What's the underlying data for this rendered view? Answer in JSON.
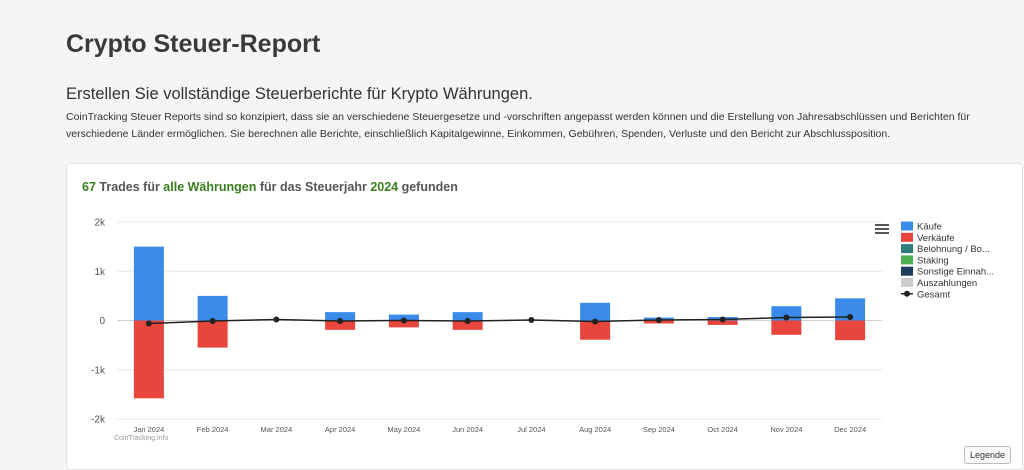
{
  "page": {
    "title": "Crypto Steuer-Report",
    "subtitle": "Erstellen Sie vollständige Steuerberichte für Krypto Währungen.",
    "description": "CoinTracking Steuer Reports sind so konzipiert, dass sie an verschiedene Steuergesetze und -vorschriften angepasst werden können und die Erstellung von Jahresabschlüssen und Berichten für verschiedene Länder ermöglichen. Sie berechnen alle Berichte, einschließlich Kapitalgewinne, Einkommen, Gebühren, Spenden, Verluste und den Bericht zur Abschlussposition."
  },
  "card": {
    "count": "67",
    "trades_label": " Trades für ",
    "currency": "alle Währungen",
    "mid_label": " für das Steuerjahr ",
    "year": "2024",
    "end_label": " gefunden",
    "legend_button": "Legende",
    "credit": "CoinTracking.info"
  },
  "chart_data": {
    "type": "bar",
    "stacked": true,
    "categories": [
      "Jan 2024",
      "Feb 2024",
      "Mar 2024",
      "Apr 2024",
      "May 2024",
      "Jun 2024",
      "Jul 2024",
      "Aug 2024",
      "Sep 2024",
      "Oct 2024",
      "Nov 2024",
      "Dec 2024"
    ],
    "ylim": [
      -2000,
      2000
    ],
    "yticks": [
      2000,
      1000,
      0,
      -1000,
      -2000
    ],
    "ytick_labels": [
      "2k",
      "1k",
      "0",
      "-1k",
      "-2k"
    ],
    "series": [
      {
        "name": "Käufe",
        "type": "bar",
        "color": "#3b8beb",
        "values": [
          1500,
          500,
          0,
          170,
          120,
          170,
          0,
          360,
          60,
          70,
          290,
          450
        ]
      },
      {
        "name": "Verkäufe",
        "type": "bar",
        "color": "#e8453c",
        "values": [
          -1580,
          -550,
          0,
          -190,
          -140,
          -190,
          0,
          -390,
          -60,
          -90,
          -290,
          -400
        ]
      },
      {
        "name": "Belohnung / Bo...",
        "type": "bar",
        "color": "#2e7d7d",
        "values": [
          0,
          0,
          0,
          0,
          0,
          0,
          0,
          0,
          0,
          0,
          0,
          0
        ]
      },
      {
        "name": "Staking",
        "type": "bar",
        "color": "#4caf50",
        "values": [
          0,
          0,
          0,
          0,
          0,
          0,
          0,
          0,
          0,
          0,
          0,
          0
        ]
      },
      {
        "name": "Sonstige Einnah...",
        "type": "bar",
        "color": "#1f3d5c",
        "values": [
          0,
          0,
          0,
          0,
          0,
          0,
          0,
          0,
          0,
          0,
          0,
          0
        ]
      },
      {
        "name": "Auszahlungen",
        "type": "bar",
        "color": "#cccccc",
        "hidden": true,
        "values": [
          0,
          0,
          0,
          0,
          0,
          0,
          0,
          0,
          0,
          0,
          0,
          0
        ]
      },
      {
        "name": "Gesamt",
        "type": "line",
        "color": "#222222",
        "values": [
          -60,
          -10,
          20,
          -10,
          0,
          -10,
          10,
          -20,
          10,
          20,
          60,
          70
        ]
      }
    ]
  }
}
